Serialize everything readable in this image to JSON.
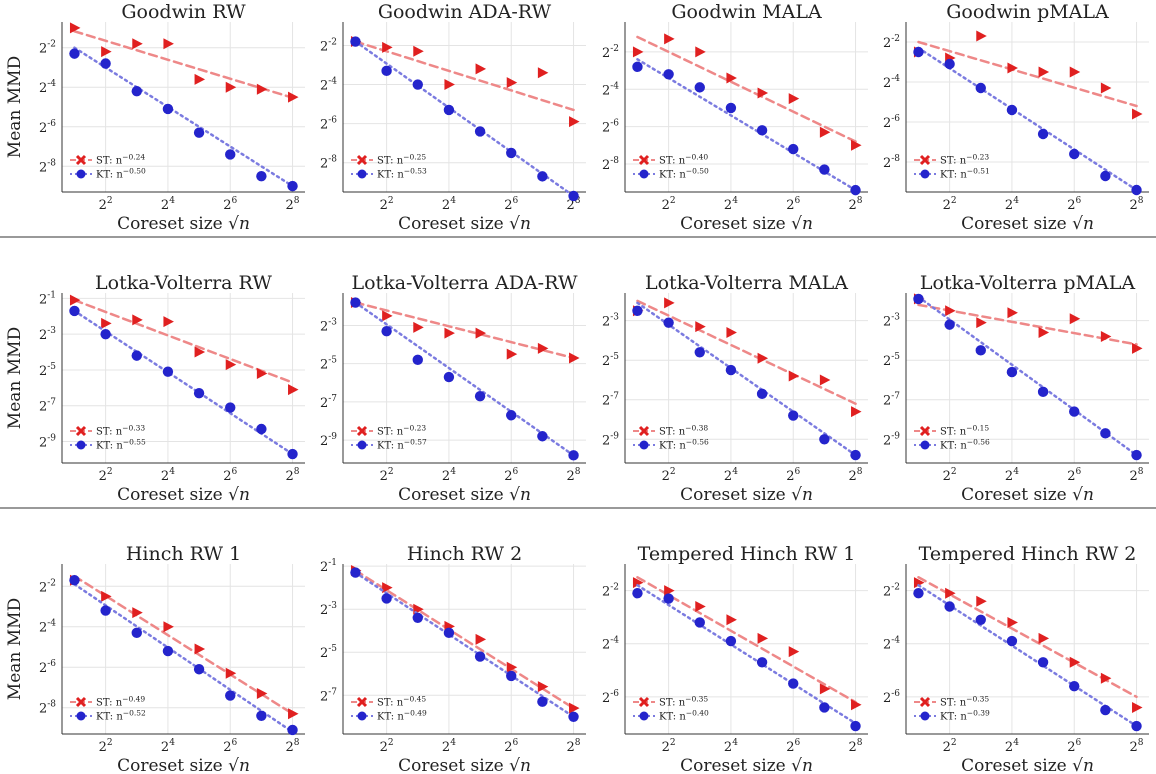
{
  "figure": {
    "ylabel": "Mean MMD",
    "xlabel_text": "Coreset size",
    "xlabel_sym": "√n",
    "colors": {
      "ST": "#e02020",
      "ST_line": "#ee8888",
      "KT": "#2424cc",
      "KT_line": "#7b7be0"
    }
  },
  "chart_data": [
    {
      "type": "scatter",
      "title": "Goodwin RW",
      "xlabel": "Coreset size √n",
      "ylabel": "Mean MMD",
      "log_base": 2,
      "xlim": [
        0.6,
        8.4
      ],
      "ylim": [
        -9.3,
        -0.7
      ],
      "xticks": [
        2,
        4,
        6,
        8
      ],
      "yticks": [
        -8,
        -6,
        -4,
        -2
      ],
      "x": [
        1,
        2,
        3,
        4,
        5,
        6,
        7,
        8
      ],
      "series": [
        {
          "name": "ST",
          "slope_label": "n^{-0.24}",
          "values": [
            -1.0,
            -2.2,
            -1.8,
            -1.8,
            -3.6,
            -4.0,
            -4.1,
            -4.5
          ],
          "fit": [
            -1.17,
            -4.53
          ]
        },
        {
          "name": "KT",
          "slope_label": "n^{-0.50}",
          "values": [
            -2.3,
            -2.8,
            -4.2,
            -5.1,
            -6.3,
            -7.4,
            -8.5,
            -9.0
          ],
          "fit": [
            -2.0,
            -9.0
          ]
        }
      ]
    },
    {
      "type": "scatter",
      "title": "Goodwin ADA-RW",
      "xlabel": "Coreset size √n",
      "ylabel": "",
      "log_base": 2,
      "xlim": [
        0.6,
        8.4
      ],
      "ylim": [
        -9.5,
        -0.8
      ],
      "xticks": [
        2,
        4,
        6,
        8
      ],
      "yticks": [
        -8,
        -6,
        -4,
        -2
      ],
      "x": [
        1,
        2,
        3,
        4,
        5,
        6,
        7,
        8
      ],
      "series": [
        {
          "name": "ST",
          "slope_label": "n^{-0.25}",
          "values": [
            -1.8,
            -2.1,
            -2.3,
            -4.0,
            -3.2,
            -3.9,
            -3.4,
            -5.9
          ],
          "fit": [
            -1.8,
            -5.3
          ]
        },
        {
          "name": "KT",
          "slope_label": "n^{-0.53}",
          "values": [
            -1.8,
            -3.3,
            -4.0,
            -5.3,
            -6.4,
            -7.5,
            -8.7,
            -9.7
          ],
          "fit": [
            -1.8,
            -9.7
          ]
        }
      ]
    },
    {
      "type": "scatter",
      "title": "Goodwin MALA",
      "xlabel": "Coreset size √n",
      "ylabel": "",
      "log_base": 2,
      "xlim": [
        0.6,
        8.4
      ],
      "ylim": [
        -9.5,
        -0.4
      ],
      "xticks": [
        2,
        4,
        6,
        8
      ],
      "yticks": [
        -8,
        -6,
        -4,
        -2
      ],
      "x": [
        1,
        2,
        3,
        4,
        5,
        6,
        7,
        8
      ],
      "series": [
        {
          "name": "ST",
          "slope_label": "n^{-0.40}",
          "values": [
            -2.0,
            -1.3,
            -2.0,
            -3.4,
            -4.2,
            -4.5,
            -6.3,
            -7.0
          ],
          "fit": [
            -1.2,
            -6.8
          ]
        },
        {
          "name": "KT",
          "slope_label": "n^{-0.50}",
          "values": [
            -2.8,
            -3.2,
            -3.9,
            -5.0,
            -6.2,
            -7.2,
            -8.3,
            -9.4
          ],
          "fit": [
            -2.4,
            -9.4
          ]
        }
      ]
    },
    {
      "type": "scatter",
      "title": "Goodwin pMALA",
      "xlabel": "Coreset size √n",
      "ylabel": "",
      "log_base": 2,
      "xlim": [
        0.6,
        8.4
      ],
      "ylim": [
        -9.5,
        -1.0
      ],
      "xticks": [
        2,
        4,
        6,
        8
      ],
      "yticks": [
        -8,
        -6,
        -4,
        -2
      ],
      "x": [
        1,
        2,
        3,
        4,
        5,
        6,
        7,
        8
      ],
      "series": [
        {
          "name": "ST",
          "slope_label": "n^{-0.23}",
          "values": [
            -2.5,
            -2.8,
            -1.7,
            -3.3,
            -3.5,
            -3.5,
            -4.3,
            -5.6
          ],
          "fit": [
            -2.0,
            -5.2
          ]
        },
        {
          "name": "KT",
          "slope_label": "n^{-0.51}",
          "values": [
            -2.5,
            -3.1,
            -4.3,
            -5.4,
            -6.6,
            -7.6,
            -8.7,
            -9.4
          ],
          "fit": [
            -2.3,
            -9.4
          ]
        }
      ]
    },
    {
      "type": "scatter",
      "title": "Lotka-Volterra RW",
      "xlabel": "Coreset size √n",
      "ylabel": "Mean MMD",
      "log_base": 2,
      "xlim": [
        0.6,
        8.4
      ],
      "ylim": [
        -10.2,
        -0.7
      ],
      "xticks": [
        2,
        4,
        6,
        8
      ],
      "yticks": [
        -9,
        -7,
        -5,
        -3,
        -1
      ],
      "x": [
        1,
        2,
        3,
        4,
        5,
        6,
        7,
        8
      ],
      "series": [
        {
          "name": "ST",
          "slope_label": "n^{-0.33}",
          "values": [
            -1.1,
            -2.4,
            -2.2,
            -2.3,
            -4.0,
            -4.7,
            -5.2,
            -6.1
          ],
          "fit": [
            -1.1,
            -5.7
          ]
        },
        {
          "name": "KT",
          "slope_label": "n^{-0.55}",
          "values": [
            -1.7,
            -3.0,
            -4.2,
            -5.1,
            -6.3,
            -7.1,
            -8.3,
            -9.7
          ],
          "fit": [
            -1.7,
            -9.7
          ]
        }
      ]
    },
    {
      "type": "scatter",
      "title": "Lotka-Volterra ADA-RW",
      "xlabel": "Coreset size √n",
      "ylabel": "",
      "log_base": 2,
      "xlim": [
        0.6,
        8.4
      ],
      "ylim": [
        -10.2,
        -1.3
      ],
      "xticks": [
        2,
        4,
        6,
        8
      ],
      "yticks": [
        -9,
        -7,
        -5,
        -3
      ],
      "x": [
        1,
        2,
        3,
        4,
        5,
        6,
        7,
        8
      ],
      "series": [
        {
          "name": "ST",
          "slope_label": "n^{-0.23}",
          "values": [
            -1.8,
            -2.5,
            -3.1,
            -3.4,
            -3.4,
            -4.5,
            -4.2,
            -4.7
          ],
          "fit": [
            -1.8,
            -4.7
          ]
        },
        {
          "name": "KT",
          "slope_label": "n^{-0.57}",
          "values": [
            -1.8,
            -3.3,
            -4.8,
            -5.7,
            -6.7,
            -7.7,
            -8.8,
            -9.8
          ],
          "fit": [
            -1.8,
            -9.8
          ]
        }
      ]
    },
    {
      "type": "scatter",
      "title": "Lotka-Volterra MALA",
      "xlabel": "Coreset size √n",
      "ylabel": "",
      "log_base": 2,
      "xlim": [
        0.6,
        8.4
      ],
      "ylim": [
        -10.2,
        -1.6
      ],
      "xticks": [
        2,
        4,
        6,
        8
      ],
      "yticks": [
        -9,
        -7,
        -5,
        -3
      ],
      "x": [
        1,
        2,
        3,
        4,
        5,
        6,
        7,
        8
      ],
      "series": [
        {
          "name": "ST",
          "slope_label": "n^{-0.38}",
          "values": [
            -2.5,
            -2.1,
            -3.3,
            -3.6,
            -4.9,
            -5.8,
            -6.0,
            -7.6
          ],
          "fit": [
            -2.0,
            -7.2
          ]
        },
        {
          "name": "KT",
          "slope_label": "n^{-0.56}",
          "values": [
            -2.5,
            -3.1,
            -4.6,
            -5.5,
            -6.7,
            -7.8,
            -9.0,
            -9.8
          ],
          "fit": [
            -2.1,
            -9.8
          ]
        }
      ]
    },
    {
      "type": "scatter",
      "title": "Lotka-Volterra pMALA",
      "xlabel": "Coreset size √n",
      "ylabel": "",
      "log_base": 2,
      "xlim": [
        0.6,
        8.4
      ],
      "ylim": [
        -10.2,
        -1.6
      ],
      "xticks": [
        2,
        4,
        6,
        8
      ],
      "yticks": [
        -9,
        -7,
        -5,
        -3
      ],
      "x": [
        1,
        2,
        3,
        4,
        5,
        6,
        7,
        8
      ],
      "series": [
        {
          "name": "ST",
          "slope_label": "n^{-0.15}",
          "values": [
            -1.9,
            -2.5,
            -3.1,
            -2.6,
            -3.6,
            -2.9,
            -3.8,
            -4.4
          ],
          "fit": [
            -2.2,
            -4.2
          ]
        },
        {
          "name": "KT",
          "slope_label": "n^{-0.56}",
          "values": [
            -1.9,
            -3.2,
            -4.5,
            -5.6,
            -6.6,
            -7.6,
            -8.7,
            -9.8
          ],
          "fit": [
            -1.8,
            -9.8
          ]
        }
      ]
    },
    {
      "type": "scatter",
      "title": "Hinch RW 1",
      "xlabel": "Coreset size √n",
      "ylabel": "Mean MMD",
      "log_base": 2,
      "xlim": [
        0.6,
        8.4
      ],
      "ylim": [
        -9.3,
        -0.9
      ],
      "xticks": [
        2,
        4,
        6,
        8
      ],
      "yticks": [
        -8,
        -6,
        -4,
        -2
      ],
      "x": [
        1,
        2,
        3,
        4,
        5,
        6,
        7,
        8
      ],
      "series": [
        {
          "name": "ST",
          "slope_label": "n^{-0.49}",
          "values": [
            -1.7,
            -2.5,
            -3.3,
            -4.0,
            -5.1,
            -6.3,
            -7.3,
            -8.3
          ],
          "fit": [
            -1.5,
            -8.3
          ]
        },
        {
          "name": "KT",
          "slope_label": "n^{-0.52}",
          "values": [
            -1.7,
            -3.2,
            -4.3,
            -5.2,
            -6.1,
            -7.4,
            -8.4,
            -9.1
          ],
          "fit": [
            -1.9,
            -9.2
          ]
        }
      ]
    },
    {
      "type": "scatter",
      "title": "Hinch RW 2",
      "xlabel": "Coreset size √n",
      "ylabel": "",
      "log_base": 2,
      "xlim": [
        0.6,
        8.4
      ],
      "ylim": [
        -8.8,
        -0.9
      ],
      "xticks": [
        2,
        4,
        6,
        8
      ],
      "yticks": [
        -7,
        -5,
        -3,
        -1
      ],
      "x": [
        1,
        2,
        3,
        4,
        5,
        6,
        7,
        8
      ],
      "series": [
        {
          "name": "ST",
          "slope_label": "n^{-0.45}",
          "values": [
            -1.2,
            -2.0,
            -3.0,
            -3.8,
            -4.4,
            -5.7,
            -6.6,
            -7.6
          ],
          "fit": [
            -1.2,
            -7.6
          ]
        },
        {
          "name": "KT",
          "slope_label": "n^{-0.49}",
          "values": [
            -1.3,
            -2.5,
            -3.4,
            -4.1,
            -5.2,
            -6.1,
            -7.3,
            -8.0
          ],
          "fit": [
            -1.3,
            -8.0
          ]
        }
      ]
    },
    {
      "type": "scatter",
      "title": "Tempered Hinch RW 1",
      "xlabel": "Coreset size √n",
      "ylabel": "",
      "log_base": 2,
      "xlim": [
        0.6,
        8.4
      ],
      "ylim": [
        -7.4,
        -1.0
      ],
      "xticks": [
        2,
        4,
        6,
        8
      ],
      "yticks": [
        -6,
        -4,
        -2
      ],
      "x": [
        1,
        2,
        3,
        4,
        5,
        6,
        7,
        8
      ],
      "series": [
        {
          "name": "ST",
          "slope_label": "n^{-0.35}",
          "values": [
            -1.7,
            -2.0,
            -2.6,
            -3.1,
            -3.8,
            -4.3,
            -5.7,
            -6.3
          ],
          "fit": [
            -1.5,
            -6.2
          ]
        },
        {
          "name": "KT",
          "slope_label": "n^{-0.40}",
          "values": [
            -2.1,
            -2.3,
            -3.2,
            -3.9,
            -4.7,
            -5.5,
            -6.4,
            -7.1
          ],
          "fit": [
            -1.8,
            -7.0
          ]
        }
      ]
    },
    {
      "type": "scatter",
      "title": "Tempered Hinch RW 2",
      "xlabel": "Coreset size √n",
      "ylabel": "",
      "log_base": 2,
      "xlim": [
        0.6,
        8.4
      ],
      "ylim": [
        -7.4,
        -1.0
      ],
      "xticks": [
        2,
        4,
        6,
        8
      ],
      "yticks": [
        -6,
        -4,
        -2
      ],
      "x": [
        1,
        2,
        3,
        4,
        5,
        6,
        7,
        8
      ],
      "series": [
        {
          "name": "ST",
          "slope_label": "n^{-0.35}",
          "values": [
            -1.7,
            -2.1,
            -2.4,
            -3.2,
            -3.8,
            -4.7,
            -5.3,
            -6.4
          ],
          "fit": [
            -1.5,
            -6.0
          ]
        },
        {
          "name": "KT",
          "slope_label": "n^{-0.39}",
          "values": [
            -2.1,
            -2.6,
            -3.1,
            -3.9,
            -4.7,
            -5.6,
            -6.5,
            -7.1
          ],
          "fit": [
            -1.8,
            -7.1
          ]
        }
      ]
    }
  ]
}
